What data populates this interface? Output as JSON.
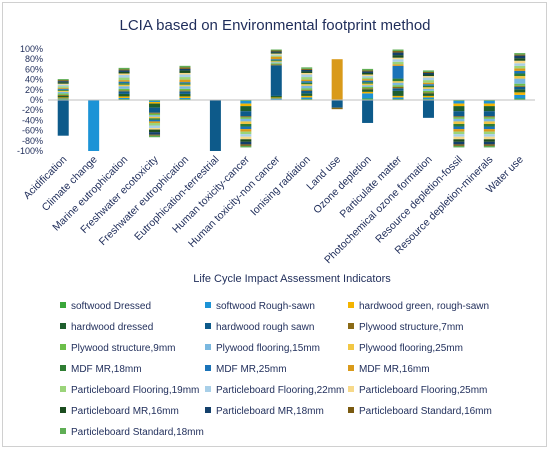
{
  "chart_data": {
    "type": "bar",
    "stacked": true,
    "title": "LCIA based on Environmental footprint method",
    "xlabel": "Life Cycle Impact Assessment Indicators",
    "ylabel": "",
    "ylim": [
      -100,
      100
    ],
    "yticks": [
      "100%",
      "80%",
      "60%",
      "40%",
      "20%",
      "0%",
      "-20%",
      "-40%",
      "-60%",
      "-80%",
      "-100%"
    ],
    "grid": false,
    "legend_position": "bottom",
    "categories": [
      "Acidification",
      "Climate change",
      "Marine eutrophication",
      "Freshwater ecotoxicity",
      "Freshwater eutrophication",
      "Eutrophication-terrestrial",
      "Human toxicity-cancer",
      "Human toxicity-non cancer",
      "Ionising radiation",
      "Land use",
      "Ozone depletion",
      "Particulate matter",
      "Photochemical ozone formation",
      "Resource depletion-fossil",
      "Resource depletion-minerals",
      "Water use"
    ],
    "series": [
      {
        "name": "softwood Dressed",
        "color": "#3aa63a",
        "values": [
          2,
          0,
          2,
          -2,
          2,
          0,
          -2,
          1,
          2,
          0,
          3,
          2,
          2,
          -2,
          -2,
          3
        ]
      },
      {
        "name": "softwood Rough-sawn",
        "color": "#1c93d6",
        "values": [
          1,
          -100,
          2,
          -2,
          2,
          0,
          -5,
          2,
          3,
          0,
          10,
          3,
          3,
          -5,
          -5,
          7
        ]
      },
      {
        "name": "hardwood green, rough-sawn",
        "color": "#f4b400",
        "values": [
          2,
          0,
          3,
          -3,
          3,
          0,
          -5,
          2,
          3,
          0,
          3,
          3,
          3,
          -5,
          -5,
          5
        ]
      },
      {
        "name": "hardwood dressed",
        "color": "#1e5f2e",
        "values": [
          3,
          0,
          5,
          -8,
          5,
          0,
          -10,
          3,
          5,
          0,
          5,
          10,
          5,
          -10,
          -10,
          6
        ]
      },
      {
        "name": "hardwood rough sawn",
        "color": "#0d5a8a",
        "values": [
          -70,
          0,
          5,
          -10,
          5,
          -100,
          -10,
          60,
          5,
          -15,
          -45,
          5,
          -35,
          -10,
          -10,
          5
        ]
      },
      {
        "name": "Plywood structure,7mm",
        "color": "#8a6a16",
        "values": [
          2,
          0,
          2,
          -2,
          2,
          0,
          -2,
          2,
          2,
          -3,
          2,
          3,
          2,
          -2,
          -2,
          2
        ]
      },
      {
        "name": "Plywood structure,9mm",
        "color": "#6cbf4a",
        "values": [
          3,
          0,
          3,
          -3,
          3,
          0,
          -3,
          2,
          3,
          0,
          3,
          3,
          3,
          -3,
          -3,
          4
        ]
      },
      {
        "name": "Plywood flooring,15mm",
        "color": "#7ab8e0",
        "values": [
          3,
          0,
          5,
          -3,
          5,
          0,
          -5,
          2,
          5,
          0,
          3,
          5,
          4,
          -5,
          -5,
          10
        ]
      },
      {
        "name": "Plywood flooring,25mm",
        "color": "#f2c744",
        "values": [
          2,
          0,
          3,
          -3,
          3,
          0,
          -5,
          2,
          3,
          0,
          3,
          3,
          3,
          -5,
          -5,
          5
        ]
      },
      {
        "name": "MDF MR,18mm",
        "color": "#2e7d32",
        "values": [
          2,
          0,
          3,
          -3,
          3,
          0,
          -5,
          2,
          3,
          0,
          3,
          5,
          3,
          -5,
          -5,
          5
        ]
      },
      {
        "name": "MDF MR,25mm",
        "color": "#1a73b8",
        "values": [
          2,
          0,
          3,
          -3,
          2,
          0,
          -5,
          2,
          3,
          0,
          3,
          25,
          3,
          -5,
          -5,
          5
        ]
      },
      {
        "name": "MDF MR,16mm",
        "color": "#d99a1a",
        "values": [
          2,
          0,
          3,
          -3,
          5,
          0,
          -5,
          5,
          3,
          80,
          3,
          3,
          3,
          -5,
          -5,
          5
        ]
      },
      {
        "name": "Particleboard Flooring,19mm",
        "color": "#9bd47a",
        "values": [
          3,
          0,
          5,
          -5,
          5,
          0,
          -5,
          2,
          5,
          0,
          3,
          5,
          5,
          -5,
          -5,
          5
        ]
      },
      {
        "name": "Particleboard Flooring,22mm",
        "color": "#a8cfe8",
        "values": [
          3,
          0,
          5,
          -5,
          5,
          0,
          -5,
          2,
          5,
          0,
          3,
          5,
          5,
          -5,
          -5,
          5
        ]
      },
      {
        "name": "Particleboard Flooring,25mm",
        "color": "#f7d98a",
        "values": [
          2,
          0,
          3,
          -3,
          3,
          0,
          -5,
          2,
          3,
          0,
          3,
          3,
          3,
          -5,
          -5,
          5
        ]
      },
      {
        "name": "Particleboard MR,16mm",
        "color": "#1b4d1f",
        "values": [
          3,
          0,
          3,
          -5,
          5,
          0,
          -5,
          2,
          3,
          0,
          3,
          5,
          3,
          -5,
          -5,
          5
        ]
      },
      {
        "name": "Particleboard MR,18mm",
        "color": "#14406b",
        "values": [
          2,
          0,
          3,
          -5,
          3,
          0,
          -5,
          2,
          3,
          0,
          3,
          5,
          3,
          -5,
          -5,
          5
        ]
      },
      {
        "name": "Particleboard Standard,16mm",
        "color": "#7a5a10",
        "values": [
          2,
          0,
          2,
          -2,
          3,
          0,
          -3,
          2,
          2,
          0,
          2,
          3,
          2,
          -3,
          -3,
          2
        ]
      },
      {
        "name": "Particleboard Standard,18mm",
        "color": "#5fae55",
        "values": [
          2,
          0,
          3,
          -3,
          3,
          0,
          -3,
          2,
          3,
          0,
          3,
          3,
          3,
          -3,
          -3,
          3
        ]
      }
    ]
  }
}
